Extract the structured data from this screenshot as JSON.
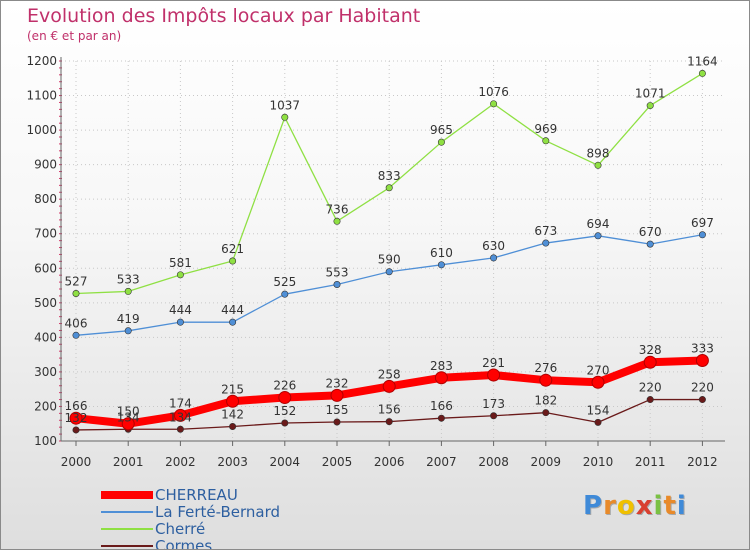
{
  "chart_data": {
    "type": "line",
    "title": "Evolution des Impôts locaux par Habitant",
    "subtitle": "(en € et par an)",
    "xlabel": "",
    "ylabel": "",
    "ylim": [
      100,
      1200
    ],
    "yticks": [
      100,
      200,
      300,
      400,
      500,
      600,
      700,
      800,
      900,
      1000,
      1100,
      1200
    ],
    "categories": [
      "2000",
      "2001",
      "2002",
      "2003",
      "2004",
      "2005",
      "2006",
      "2007",
      "2008",
      "2009",
      "2010",
      "2011",
      "2012"
    ],
    "series": [
      {
        "name": "CHERREAU",
        "color": "#ff0000",
        "values": [
          166,
          150,
          174,
          215,
          226,
          232,
          258,
          283,
          291,
          276,
          270,
          328,
          333
        ]
      },
      {
        "name": "La Ferté-Bernard",
        "color": "#4f8fd6",
        "values": [
          406,
          419,
          444,
          444,
          525,
          553,
          590,
          610,
          630,
          673,
          694,
          670,
          697
        ]
      },
      {
        "name": "Cherré",
        "color": "#8fe043",
        "values": [
          527,
          533,
          581,
          621,
          1037,
          736,
          833,
          965,
          1076,
          969,
          898,
          1071,
          1164
        ]
      },
      {
        "name": "Cormes",
        "color": "#6a1a1a",
        "values": [
          132,
          134,
          134,
          142,
          152,
          155,
          156,
          166,
          173,
          182,
          154,
          220,
          220
        ]
      }
    ]
  },
  "logo": {
    "letters": [
      "P",
      "r",
      "o",
      "x",
      "i",
      "t",
      "i"
    ],
    "colors": [
      "#3f8ad8",
      "#e88a2a",
      "#f0c000",
      "#d94030",
      "#7ac143",
      "#e88a2a",
      "#3f8ad8"
    ]
  }
}
